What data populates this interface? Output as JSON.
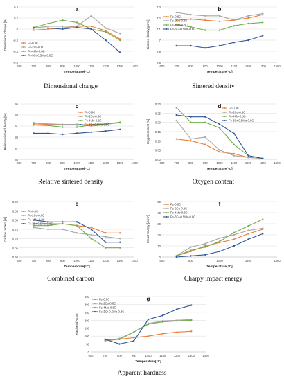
{
  "colors": {
    "orange": "#ED7D31",
    "gray": "#A5A5A5",
    "green": "#70AD47",
    "blue": "#2F5597"
  },
  "captions": {
    "a": "Dimensional change",
    "b": "Sintered density",
    "c": "Relative sintered density",
    "d": "Oxygen content",
    "e": "Combined carbon",
    "f": "Charpy impact energy",
    "g": "Apparent hardness"
  },
  "chart_data": [
    {
      "id": "a",
      "type": "line",
      "letter": "a",
      "xlabel": "Temperature[°C]",
      "ylabel": "Dimensional Change [%]",
      "xlim": [
        600,
        1400
      ],
      "ylim": [
        -0.6,
        0.4
      ],
      "xticks": [
        600,
        700,
        800,
        900,
        1000,
        1100,
        1200,
        1300,
        1400
      ],
      "yticks": [
        -0.6,
        -0.4,
        -0.2,
        0,
        0.2,
        0.4
      ],
      "ytick_labels": [
        "-0.6",
        "-0.4",
        "-0.2",
        "0",
        "0.2",
        "0.4"
      ],
      "legend_pos": "lower-left",
      "grid": true,
      "x": [
        700,
        800,
        900,
        1000,
        1100,
        1200,
        1300
      ],
      "series": [
        {
          "name": "Fe-0.8C",
          "color": "orange",
          "values": [
            -0.02,
            0.0,
            0.02,
            0.05,
            0.05,
            -0.03,
            -0.18
          ]
        },
        {
          "name": "Fe-2Cu-0.8C",
          "color": "gray",
          "values": [
            0.02,
            0.05,
            0.05,
            0.05,
            0.24,
            0.02,
            -0.08
          ]
        },
        {
          "name": "Fe-4Mo-0.8C",
          "color": "green",
          "values": [
            0.03,
            0.1,
            0.16,
            0.12,
            0.0,
            -0.05,
            -0.2
          ]
        },
        {
          "name": "Fe-3Cr-0.5Mo-0.8C",
          "color": "blue",
          "values": [
            0.02,
            0.02,
            0.0,
            0.03,
            0.0,
            -0.2,
            -0.42
          ]
        }
      ]
    },
    {
      "id": "b",
      "type": "line",
      "letter": "b",
      "xlabel": "Temperature[°C]",
      "ylabel": "Sintered density[g/cm³]",
      "xlim": [
        600,
        1400
      ],
      "ylim": [
        6.8,
        7.3
      ],
      "xticks": [
        600,
        700,
        800,
        900,
        1000,
        1100,
        1200,
        1300,
        1400
      ],
      "yticks": [
        6.8,
        6.9,
        7.0,
        7.1,
        7.2,
        7.3
      ],
      "ytick_labels": [
        "6.8",
        "6.9",
        "7",
        "7.1",
        "7.2",
        "7.3"
      ],
      "legend_pos": "left",
      "grid": true,
      "x": [
        700,
        800,
        900,
        1000,
        1100,
        1200,
        1300
      ],
      "series": [
        {
          "name": "Fe-0.8C",
          "color": "orange",
          "values": [
            7.18,
            7.19,
            7.18,
            7.17,
            7.18,
            7.2,
            7.23
          ]
        },
        {
          "name": "Fe-2Cu-0.8C",
          "color": "gray",
          "values": [
            7.25,
            7.23,
            7.22,
            7.22,
            7.18,
            7.22,
            7.24
          ]
        },
        {
          "name": "Fe-4Mo-0.8C",
          "color": "green",
          "values": [
            7.14,
            7.12,
            7.09,
            7.09,
            7.13,
            7.15,
            7.16
          ]
        },
        {
          "name": "Fe-3Cr-0.5Mo-0.8C",
          "color": "blue",
          "values": [
            6.95,
            6.95,
            6.93,
            6.95,
            6.98,
            7.0,
            7.04
          ]
        }
      ]
    },
    {
      "id": "c",
      "type": "line",
      "letter": "c",
      "xlabel": "Temperature[°C]",
      "ylabel": "Relative sintered density [%]",
      "xlim": [
        600,
        1400
      ],
      "ylim": [
        85,
        95
      ],
      "xticks": [
        600,
        700,
        800,
        900,
        1000,
        1100,
        1200,
        1300,
        1400
      ],
      "yticks": [
        85,
        87,
        89,
        91,
        93,
        95
      ],
      "ytick_labels": [
        "85",
        "87",
        "89",
        "91",
        "93",
        "95"
      ],
      "legend_pos": "right",
      "grid": true,
      "x": [
        700,
        800,
        900,
        1000,
        1100,
        1200,
        1300
      ],
      "series": [
        {
          "name": "Fe-0.8C",
          "color": "orange",
          "values": [
            91.4,
            91.3,
            91.2,
            91.2,
            91.3,
            91.4,
            91.6
          ]
        },
        {
          "name": "Fe-2Cu-0.8C",
          "color": "gray",
          "values": [
            91.6,
            91.4,
            91.3,
            91.3,
            91.0,
            91.3,
            91.6
          ]
        },
        {
          "name": "Fe-4Mo-0.8C",
          "color": "green",
          "values": [
            91.2,
            91.1,
            90.8,
            90.8,
            91.2,
            91.4,
            91.7
          ]
        },
        {
          "name": "Fe-3Cr-0.5Mo-0.8C",
          "color": "blue",
          "values": [
            89.7,
            89.7,
            89.5,
            89.7,
            89.9,
            90.1,
            90.4
          ]
        }
      ]
    },
    {
      "id": "d",
      "type": "line",
      "letter": "d",
      "xlabel": "Temperature[°C]",
      "ylabel": "Oxygen content [%]",
      "xlim": [
        600,
        1400
      ],
      "ylim": [
        0,
        0.3
      ],
      "xticks": [
        600,
        700,
        800,
        900,
        1000,
        1100,
        1200,
        1300,
        1400
      ],
      "yticks": [
        0,
        0.05,
        0.1,
        0.15,
        0.2,
        0.25,
        0.3
      ],
      "ytick_labels": [
        "0.00",
        "0.05",
        "0.10",
        "0.15",
        "0.20",
        "0.25",
        "0.30"
      ],
      "legend_pos": "top-right",
      "grid": true,
      "x": [
        700,
        800,
        900,
        1000,
        1100,
        1200,
        1300
      ],
      "series": [
        {
          "name": "Fe-0.8C",
          "color": "orange",
          "values": [
            0.11,
            0.1,
            0.08,
            0.04,
            0.03,
            0.01,
            0.005
          ]
        },
        {
          "name": "Fe-2Cu-0.8C",
          "color": "gray",
          "values": [
            0.21,
            0.11,
            0.12,
            0.05,
            0.02,
            0.01,
            0.005
          ]
        },
        {
          "name": "Fe-4Mo-0.8C",
          "color": "green",
          "values": [
            0.28,
            0.2,
            0.2,
            0.17,
            0.08,
            0.02,
            0.005
          ]
        },
        {
          "name": "Fe-3Cr-0.5Mo-0.8C",
          "color": "blue",
          "values": [
            0.24,
            0.23,
            0.23,
            0.19,
            0.14,
            0.02,
            0.005
          ]
        }
      ]
    },
    {
      "id": "e",
      "type": "line",
      "letter": "e",
      "xlabel": "Temperature[°C]",
      "ylabel": "Carbon content [%]",
      "xlim": [
        600,
        1400
      ],
      "ylim": [
        0.6,
        0.9
      ],
      "xticks": [
        600,
        700,
        800,
        900,
        1000,
        1100,
        1200,
        1300,
        1400
      ],
      "yticks": [
        0.6,
        0.65,
        0.7,
        0.75,
        0.8,
        0.85,
        0.9
      ],
      "ytick_labels": [
        "0.60",
        "0.65",
        "0.70",
        "0.75",
        "0.80",
        "0.85",
        "0.90"
      ],
      "legend_pos": "left",
      "grid": true,
      "x": [
        700,
        800,
        900,
        1000,
        1100,
        1200,
        1300
      ],
      "series": [
        {
          "name": "Fe-0.8C",
          "color": "orange",
          "values": [
            0.78,
            0.78,
            0.78,
            0.77,
            0.76,
            0.73,
            0.73
          ]
        },
        {
          "name": "Fe-2Cu-0.8C",
          "color": "gray",
          "values": [
            0.76,
            0.75,
            0.75,
            0.73,
            0.72,
            0.71,
            0.7
          ]
        },
        {
          "name": "Fe-4Mo-0.8C",
          "color": "green",
          "values": [
            0.77,
            0.77,
            0.78,
            0.77,
            0.7,
            0.65,
            0.65
          ]
        },
        {
          "name": "Fe-3Cr-0.5Mo-0.8C",
          "color": "blue",
          "values": [
            0.8,
            0.79,
            0.79,
            0.79,
            0.75,
            0.68,
            0.68
          ]
        }
      ]
    },
    {
      "id": "f",
      "type": "line",
      "letter": "f",
      "xlabel": "Temperature[°C]",
      "ylabel": "Impact Energy [J/cm²]",
      "xlim": [
        600,
        1400
      ],
      "ylim": [
        0,
        50
      ],
      "xticks": [
        600,
        800,
        1000,
        1200,
        1400
      ],
      "yticks": [
        0,
        10,
        20,
        30,
        40,
        50
      ],
      "ytick_labels": [
        "0",
        "10",
        "20",
        "30",
        "40",
        "50"
      ],
      "legend_pos": "top-left",
      "grid": true,
      "x": [
        700,
        800,
        900,
        1000,
        1100,
        1200,
        1300
      ],
      "series": [
        {
          "name": "Fe-0.8C",
          "color": "orange",
          "values": [
            1,
            5,
            10,
            13,
            16,
            21,
            25
          ]
        },
        {
          "name": "Fe-2Cu-0.8C",
          "color": "gray",
          "values": [
            1,
            9,
            12,
            17,
            20,
            24,
            26
          ]
        },
        {
          "name": "Fe-4Mo-0.8C",
          "color": "green",
          "values": [
            1,
            6,
            9,
            14,
            22,
            28,
            34
          ]
        },
        {
          "name": "Fe-3Cr-0.5Mo-0.8C",
          "color": "blue",
          "values": [
            0,
            1,
            2,
            5,
            10,
            16,
            21
          ]
        }
      ]
    },
    {
      "id": "g",
      "type": "line",
      "letter": "g",
      "xlabel": "Temperature[°C]",
      "ylabel": "Hardness[HV30]",
      "xlim": [
        600,
        1400
      ],
      "ylim": [
        0,
        350
      ],
      "xticks": [
        600,
        700,
        800,
        900,
        1000,
        1100,
        1200,
        1300,
        1400
      ],
      "yticks": [
        0,
        50,
        100,
        150,
        200,
        250,
        300,
        350
      ],
      "ytick_labels": [
        "0",
        "50",
        "100",
        "150",
        "200",
        "250",
        "300",
        "350"
      ],
      "legend_pos": "top-left",
      "grid": true,
      "x": [
        700,
        800,
        900,
        1000,
        1100,
        1200,
        1300
      ],
      "series": [
        {
          "name": "Fe-0.8C",
          "color": "orange",
          "values": [
            70,
            80,
            90,
            100,
            115,
            125,
            130
          ]
        },
        {
          "name": "Fe-2Cu-0.8C",
          "color": "gray",
          "values": [
            70,
            85,
            125,
            180,
            195,
            200,
            205
          ]
        },
        {
          "name": "Fe-4Mo-0.8C",
          "color": "green",
          "values": [
            75,
            80,
            125,
            175,
            190,
            195,
            200
          ]
        },
        {
          "name": "Fe-3Cr-0.5Mo-0.8C",
          "color": "blue",
          "values": [
            80,
            50,
            70,
            205,
            230,
            270,
            295
          ]
        }
      ]
    }
  ]
}
